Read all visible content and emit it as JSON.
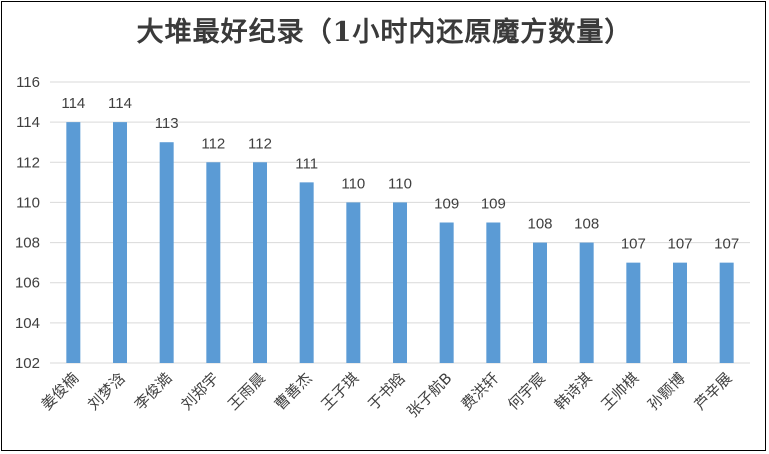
{
  "chart_data": {
    "type": "bar",
    "title": "大堆最好纪录（1小时内还原魔方数量）",
    "categories": [
      "姜俊楠",
      "刘梦浛",
      "李俊澔",
      "刘郑宇",
      "王雨晨",
      "曹善杰",
      "王子琪",
      "于书晗",
      "张子航B",
      "费洪轩",
      "何宇宸",
      "韩诗淇",
      "王帅棋",
      "孙颢博",
      "芦辛展"
    ],
    "values": [
      114,
      114,
      113,
      112,
      112,
      111,
      110,
      110,
      109,
      109,
      108,
      108,
      107,
      107,
      107
    ],
    "ylim": [
      102,
      116
    ],
    "yticks": [
      102,
      104,
      106,
      108,
      110,
      112,
      114,
      116
    ],
    "grid": true,
    "bar_color": "#5b9bd5",
    "legend": "none"
  }
}
